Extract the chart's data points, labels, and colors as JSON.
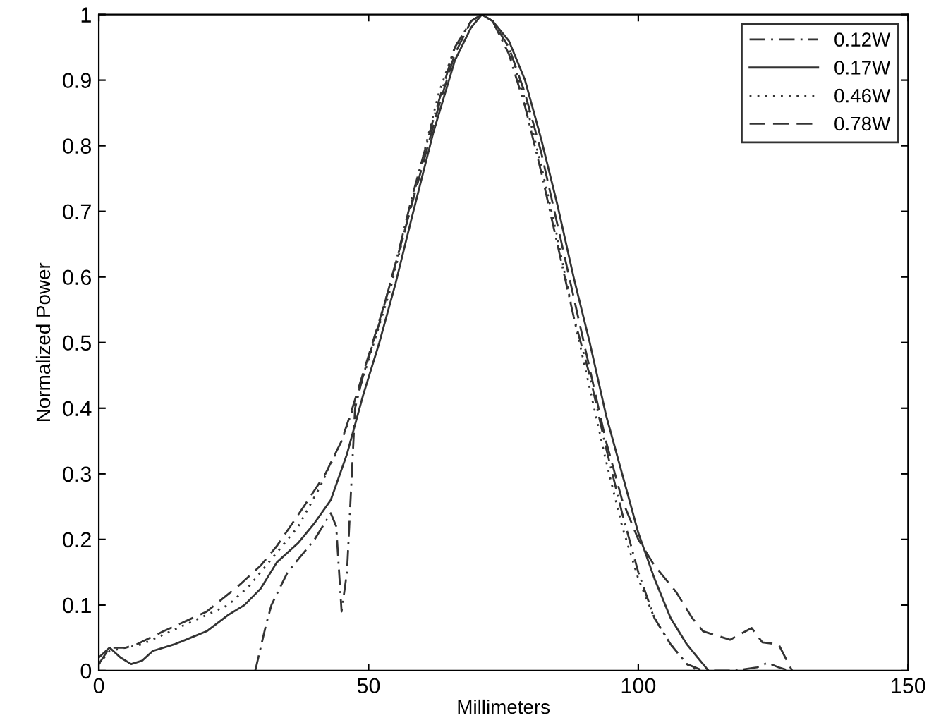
{
  "chart_data": {
    "type": "line",
    "xlabel": "Millimeters",
    "ylabel": "Normalized Power",
    "xlim": [
      0,
      150
    ],
    "xticks": [
      0,
      50,
      100,
      150
    ],
    "ylim": [
      0,
      1
    ],
    "yticks": [
      0,
      0.1,
      0.2,
      0.3,
      0.4,
      0.5,
      0.6,
      0.7,
      0.8,
      0.9,
      1
    ],
    "grid": false,
    "legend": "top right",
    "marker": "none",
    "series": [
      {
        "name": "0.12W",
        "color": "#333333",
        "line_style": "dashdot",
        "x": [
          29,
          31,
          32,
          35,
          40,
          43,
          44,
          45,
          46,
          47.5,
          49,
          52,
          55,
          58,
          62,
          66,
          69,
          71,
          73,
          76,
          79,
          82,
          85,
          88,
          91,
          94,
          97,
          100,
          103,
          106,
          109,
          112,
          118,
          122,
          124,
          126,
          128
        ],
        "values": [
          0,
          0.07,
          0.1,
          0.15,
          0.2,
          0.24,
          0.22,
          0.09,
          0.15,
          0.4,
          0.45,
          0.53,
          0.62,
          0.72,
          0.84,
          0.95,
          0.99,
          1,
          0.99,
          0.94,
          0.86,
          0.76,
          0.65,
          0.54,
          0.45,
          0.34,
          0.24,
          0.15,
          0.08,
          0.04,
          0.01,
          0,
          0,
          0.005,
          0.012,
          0.005,
          0
        ]
      },
      {
        "name": "0.17W",
        "color": "#333333",
        "line_style": "solid",
        "x": [
          0,
          2,
          4,
          6,
          8,
          10,
          14,
          17,
          20,
          24,
          27,
          30,
          33,
          37,
          40,
          43,
          46,
          49,
          52,
          55,
          58,
          62,
          66,
          69,
          71,
          73,
          76,
          79,
          82,
          85,
          88,
          91,
          94,
          97,
          100,
          103,
          106,
          109,
          111,
          113
        ],
        "values": [
          0.02,
          0.035,
          0.02,
          0.01,
          0.015,
          0.03,
          0.04,
          0.05,
          0.06,
          0.085,
          0.1,
          0.125,
          0.165,
          0.195,
          0.225,
          0.26,
          0.33,
          0.42,
          0.5,
          0.59,
          0.69,
          0.82,
          0.93,
          0.98,
          1,
          0.99,
          0.96,
          0.9,
          0.81,
          0.71,
          0.6,
          0.5,
          0.39,
          0.3,
          0.21,
          0.14,
          0.08,
          0.04,
          0.02,
          0
        ]
      },
      {
        "name": "0.46W",
        "color": "#333333",
        "line_style": "dotted",
        "x": [
          0,
          2,
          5,
          8,
          12,
          16,
          20,
          24,
          28,
          32,
          37,
          41,
          45,
          48,
          51,
          54,
          57,
          60,
          63,
          66,
          69,
          71,
          73,
          76,
          79,
          82,
          85,
          88,
          91,
          94,
          97,
          100,
          103,
          106,
          109,
          111
        ],
        "values": [
          0.01,
          0.03,
          0.035,
          0.04,
          0.055,
          0.07,
          0.085,
          0.1,
          0.13,
          0.17,
          0.22,
          0.28,
          0.35,
          0.42,
          0.5,
          0.58,
          0.68,
          0.78,
          0.88,
          0.95,
          0.99,
          1,
          0.99,
          0.95,
          0.87,
          0.77,
          0.66,
          0.54,
          0.43,
          0.32,
          0.22,
          0.14,
          0.08,
          0.04,
          0.01,
          0
        ]
      },
      {
        "name": "0.78W",
        "color": "#333333",
        "line_style": "dashed",
        "x": [
          0,
          2,
          5,
          7,
          12,
          16,
          20,
          26,
          30,
          33,
          38,
          42,
          45,
          47,
          50,
          53,
          56,
          60,
          63,
          66,
          69,
          71,
          73,
          76,
          79,
          82,
          85,
          88,
          91,
          94,
          97,
          100,
          103,
          107,
          110,
          112,
          117,
          121,
          123,
          126,
          128.5
        ],
        "values": [
          0.01,
          0.035,
          0.035,
          0.04,
          0.06,
          0.075,
          0.09,
          0.13,
          0.16,
          0.19,
          0.25,
          0.3,
          0.35,
          0.4,
          0.48,
          0.56,
          0.65,
          0.77,
          0.86,
          0.94,
          0.99,
          1,
          0.99,
          0.95,
          0.88,
          0.79,
          0.68,
          0.57,
          0.46,
          0.35,
          0.26,
          0.2,
          0.16,
          0.12,
          0.08,
          0.06,
          0.047,
          0.065,
          0.043,
          0.04,
          0
        ]
      }
    ]
  }
}
